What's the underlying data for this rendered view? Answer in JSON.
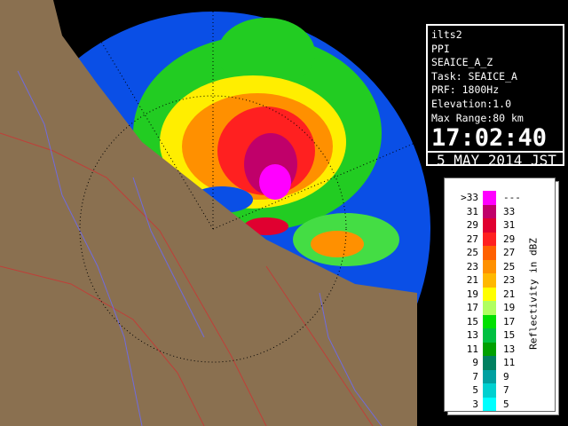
{
  "info": {
    "lines": [
      "ilts2",
      "PPI",
      "SEAICE_A_Z",
      "Task: SEAICE_A",
      "PRF: 1800Hz",
      "Elevation:1.0",
      "Max Range:80 km"
    ],
    "time": "17:02:40",
    "date": "5 MAY 2014 JST"
  },
  "legend": {
    "title": "Reflectivity in dBZ",
    "rows": [
      {
        "left": ">33",
        "right": "---",
        "color": "#ff00ff"
      },
      {
        "left": "31",
        "right": "33",
        "color": "#c0006a"
      },
      {
        "left": "29",
        "right": "31",
        "color": "#e00030"
      },
      {
        "left": "27",
        "right": "29",
        "color": "#ff2020"
      },
      {
        "left": "25",
        "right": "27",
        "color": "#ff6000"
      },
      {
        "left": "23",
        "right": "25",
        "color": "#ff9000"
      },
      {
        "left": "21",
        "right": "23",
        "color": "#ffb800"
      },
      {
        "left": "19",
        "right": "21",
        "color": "#ffff00"
      },
      {
        "left": "17",
        "right": "19",
        "color": "#b0ff60"
      },
      {
        "left": "15",
        "right": "17",
        "color": "#00e000"
      },
      {
        "left": "13",
        "right": "15",
        "color": "#00c040"
      },
      {
        "left": "11",
        "right": "13",
        "color": "#00a000"
      },
      {
        "left": "9",
        "right": "11",
        "color": "#008060"
      },
      {
        "left": "7",
        "right": "9",
        "color": "#00a0a0"
      },
      {
        "left": "5",
        "right": "7",
        "color": "#00d0d0"
      },
      {
        "left": "3",
        "right": "5",
        "color": "#00ffff"
      }
    ]
  }
}
